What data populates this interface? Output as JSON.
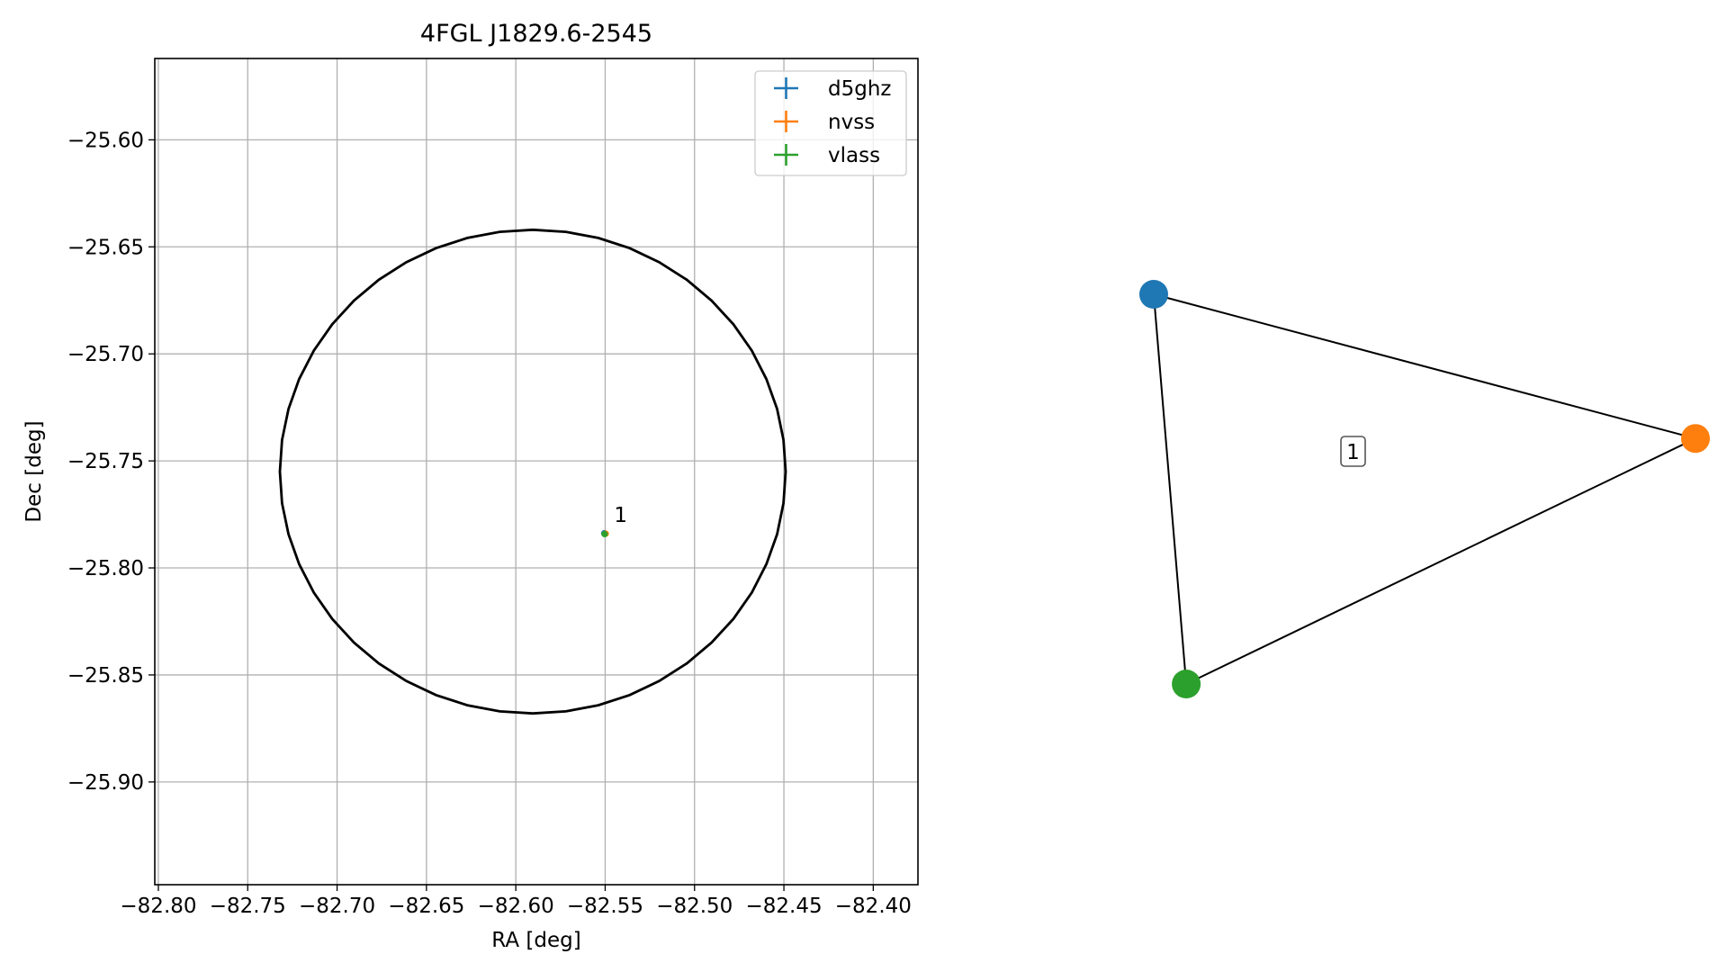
{
  "colors": {
    "d5ghz": "#1f77b4",
    "nvss": "#ff7f0e",
    "vlass": "#2ca02c",
    "grid": "#b0b0b0",
    "axis": "#000000"
  },
  "chart_data": [
    {
      "type": "scatter",
      "title": "4FGL J1829.6-2545",
      "xlabel": "RA [deg]",
      "ylabel": "Dec [deg]",
      "xlim": [
        -82.802,
        -82.375
      ],
      "ylim": [
        -25.948,
        -25.562
      ],
      "grid": true,
      "legend_position": "top-right",
      "x_ticks": [
        -82.8,
        -82.75,
        -82.7,
        -82.65,
        -82.6,
        -82.55,
        -82.5,
        -82.45,
        -82.4
      ],
      "x_tick_labels": [
        "−82.80",
        "−82.75",
        "−82.70",
        "−82.65",
        "−82.60",
        "−82.55",
        "−82.50",
        "−82.45",
        "−82.40"
      ],
      "y_ticks": [
        -25.6,
        -25.65,
        -25.7,
        -25.75,
        -25.8,
        -25.85,
        -25.9
      ],
      "y_tick_labels": [
        "−25.60",
        "−25.65",
        "−25.70",
        "−25.75",
        "−25.80",
        "−25.85",
        "−25.90"
      ],
      "series": [
        {
          "name": "d5ghz",
          "color": "#1f77b4",
          "points": [
            {
              "x": -82.5505,
              "y": -25.7838
            }
          ]
        },
        {
          "name": "nvss",
          "color": "#ff7f0e",
          "points": [
            {
              "x": -82.5497,
              "y": -25.784
            }
          ]
        },
        {
          "name": "vlass",
          "color": "#2ca02c",
          "points": [
            {
              "x": -82.5503,
              "y": -25.7842
            }
          ]
        }
      ],
      "annotations": [
        {
          "text": "1",
          "x": -82.545,
          "y": -25.7785
        }
      ],
      "ellipse": {
        "center_ra": -82.5905,
        "center_dec": -25.755,
        "semi_axis_ra": 0.1415,
        "semi_axis_dec": 0.113,
        "color": "#000000"
      }
    },
    {
      "type": "network",
      "nodes": [
        {
          "name": "d5ghz",
          "color": "#1f77b4",
          "x": 0.0,
          "y": 1.0
        },
        {
          "name": "nvss",
          "color": "#ff7f0e",
          "x": 1.0,
          "y": 0.63
        },
        {
          "name": "vlass",
          "color": "#2ca02c",
          "x": 0.06,
          "y": 0.0
        }
      ],
      "edges": [
        [
          "d5ghz",
          "nvss"
        ],
        [
          "nvss",
          "vlass"
        ],
        [
          "vlass",
          "d5ghz"
        ]
      ],
      "center_label": "1"
    }
  ]
}
